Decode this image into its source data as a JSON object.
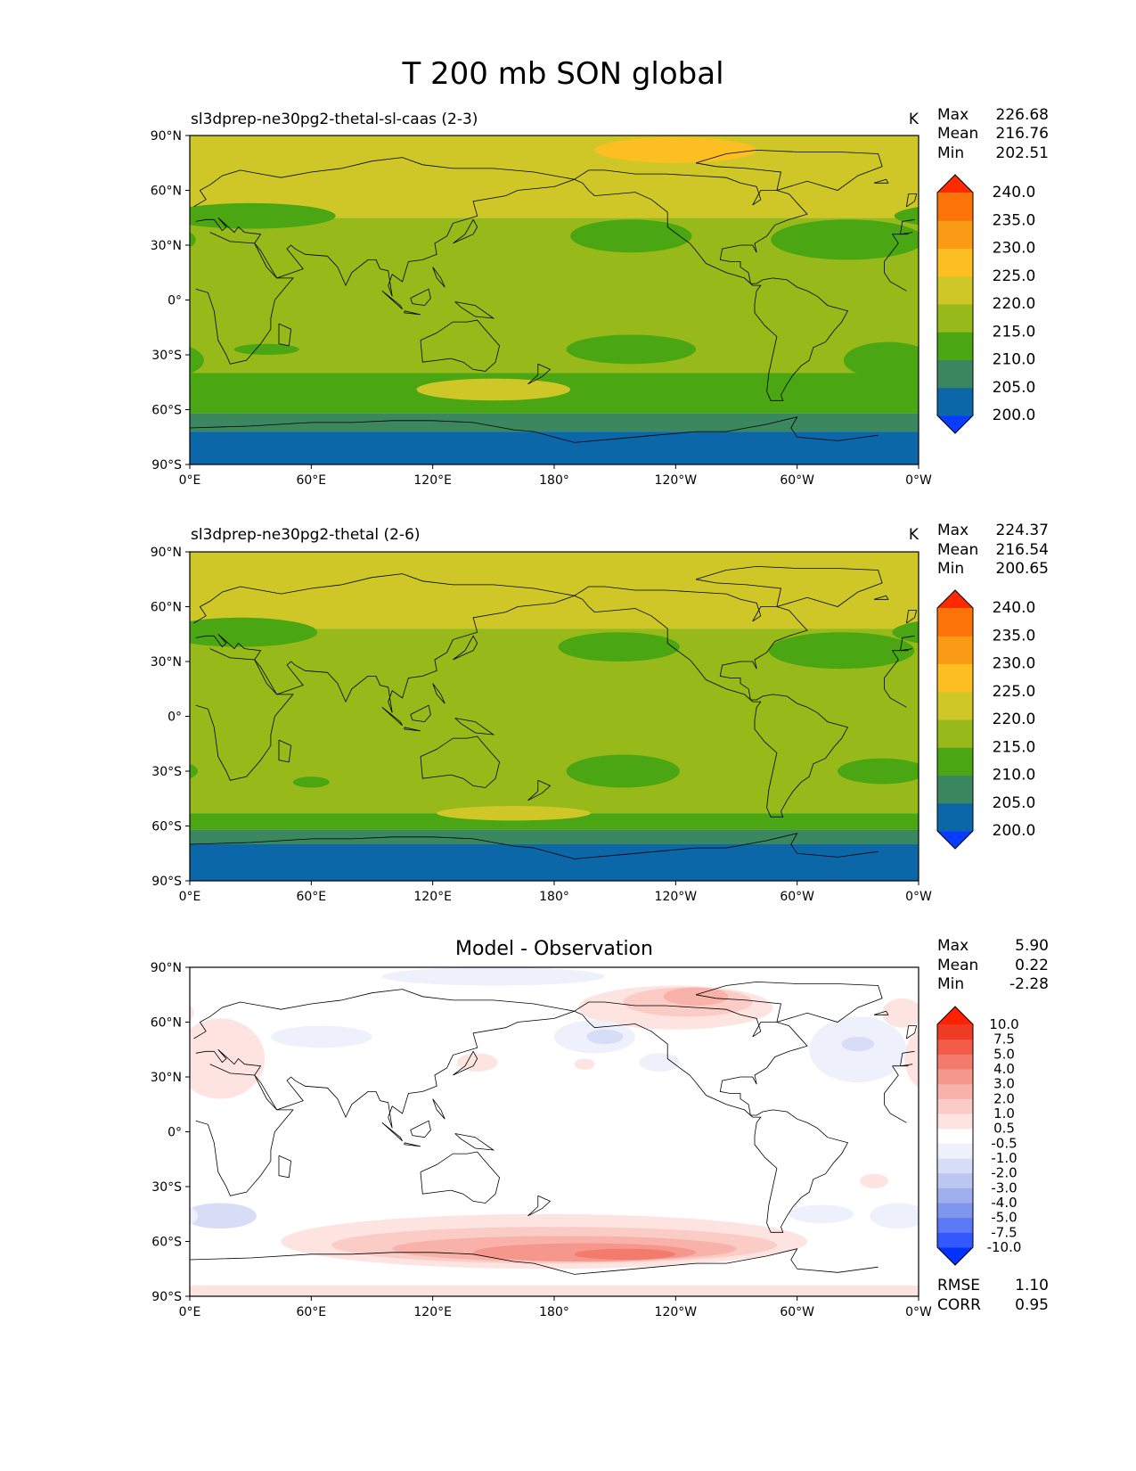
{
  "figure_title": "T 200 mb SON global",
  "chart_data": [
    {
      "type": "heatmap",
      "subtype": "filled-contour map",
      "title": "sl3dprep-ne30pg2-thetal-sl-caas (2-3)",
      "units": "K",
      "stats": {
        "labels": [
          "Max",
          "Mean",
          "Min"
        ],
        "values": [
          "226.68",
          "216.76",
          "202.51"
        ]
      },
      "x_ticks": [
        "0°E",
        "60°E",
        "120°E",
        "180°",
        "120°W",
        "60°W",
        "0°W"
      ],
      "y_ticks": [
        "90°N",
        "60°N",
        "30°N",
        "0°",
        "30°S",
        "60°S",
        "90°S"
      ],
      "xlim": [
        0,
        360
      ],
      "ylim": [
        -90,
        90
      ],
      "colorbar": {
        "extend": "both",
        "levels": [
          "200.0",
          "205.0",
          "210.0",
          "215.0",
          "220.0",
          "225.0",
          "230.0",
          "235.0",
          "240.0"
        ],
        "colors": [
          "#0a3cff",
          "#0b67a8",
          "#3a8760",
          "#4aa612",
          "#97b91a",
          "#cfc628",
          "#fbbf21",
          "#fb9a14",
          "#fb7309",
          "#ff2a00"
        ]
      },
      "fields": [
        {
          "lo": -90,
          "hi": -72,
          "lvl": 1
        },
        {
          "lo": -72,
          "hi": -62,
          "lvl": 2
        },
        {
          "lo": -62,
          "hi": -40,
          "lvl": 3
        },
        {
          "lo": -40,
          "hi": 45,
          "lvl": 4
        },
        {
          "lo": 45,
          "hi": 90,
          "lvl": 5
        }
      ],
      "blobs": [
        {
          "lon": 150,
          "lat": -49,
          "rx": 38,
          "ry": 6,
          "lvl": 5
        },
        {
          "lon": 218,
          "lat": -27,
          "rx": 32,
          "ry": 8,
          "lvl": 3
        },
        {
          "lon": 38,
          "lat": -27,
          "rx": 16,
          "ry": 3,
          "lvl": 3
        },
        {
          "lon": 345,
          "lat": -33,
          "rx": 22,
          "ry": 10,
          "lvl": 3
        },
        {
          "lon": 218,
          "lat": 35,
          "rx": 30,
          "ry": 9,
          "lvl": 3
        },
        {
          "lon": 325,
          "lat": 33,
          "rx": 38,
          "ry": 11,
          "lvl": 3
        },
        {
          "lon": 30,
          "lat": 46,
          "rx": 42,
          "ry": 7,
          "lvl": 3
        },
        {
          "lon": 240,
          "lat": 82,
          "rx": 40,
          "ry": 7,
          "lvl": 6
        }
      ]
    },
    {
      "type": "heatmap",
      "subtype": "filled-contour map",
      "title": "sl3dprep-ne30pg2-thetal (2-6)",
      "units": "K",
      "stats": {
        "labels": [
          "Max",
          "Mean",
          "Min"
        ],
        "values": [
          "224.37",
          "216.54",
          "200.65"
        ]
      },
      "x_ticks": [
        "0°E",
        "60°E",
        "120°E",
        "180°",
        "120°W",
        "60°W",
        "0°W"
      ],
      "y_ticks": [
        "90°N",
        "60°N",
        "30°N",
        "0°",
        "30°S",
        "60°S",
        "90°S"
      ],
      "xlim": [
        0,
        360
      ],
      "ylim": [
        -90,
        90
      ],
      "colorbar": {
        "extend": "both",
        "levels": [
          "200.0",
          "205.0",
          "210.0",
          "215.0",
          "220.0",
          "225.0",
          "230.0",
          "235.0",
          "240.0"
        ],
        "colors": [
          "#0a3cff",
          "#0b67a8",
          "#3a8760",
          "#4aa612",
          "#97b91a",
          "#cfc628",
          "#fbbf21",
          "#fb9a14",
          "#fb7309",
          "#ff2a00"
        ]
      },
      "fields": [
        {
          "lo": -90,
          "hi": -70,
          "lvl": 1
        },
        {
          "lo": -70,
          "hi": -62,
          "lvl": 2
        },
        {
          "lo": -62,
          "hi": -53,
          "lvl": 3
        },
        {
          "lo": -53,
          "hi": 48,
          "lvl": 4
        },
        {
          "lo": 48,
          "hi": 90,
          "lvl": 5
        }
      ],
      "blobs": [
        {
          "lon": 160,
          "lat": -53,
          "rx": 38,
          "ry": 4,
          "lvl": 5
        },
        {
          "lon": 214,
          "lat": -30,
          "rx": 28,
          "ry": 9,
          "lvl": 3
        },
        {
          "lon": 60,
          "lat": -36,
          "rx": 9,
          "ry": 3,
          "lvl": 3
        },
        {
          "lon": 342,
          "lat": -30,
          "rx": 22,
          "ry": 7,
          "lvl": 3
        },
        {
          "lon": 212,
          "lat": 38,
          "rx": 30,
          "ry": 8,
          "lvl": 3
        },
        {
          "lon": 322,
          "lat": 36,
          "rx": 36,
          "ry": 10,
          "lvl": 3
        },
        {
          "lon": 25,
          "lat": 46,
          "rx": 38,
          "ry": 8,
          "lvl": 3
        }
      ]
    },
    {
      "type": "heatmap",
      "subtype": "filled-contour map (difference)",
      "title": "Model - Observation",
      "stats": {
        "labels": [
          "Max",
          "Mean",
          "Min"
        ],
        "values": [
          "5.90",
          "0.22",
          "-2.28"
        ]
      },
      "metrics": {
        "labels": [
          "RMSE",
          "CORR"
        ],
        "values": [
          "1.10",
          "0.95"
        ]
      },
      "x_ticks": [
        "0°E",
        "60°E",
        "120°E",
        "180°",
        "120°W",
        "60°W",
        "0°W"
      ],
      "y_ticks": [
        "90°N",
        "60°N",
        "30°N",
        "0°",
        "30°S",
        "60°S",
        "90°S"
      ],
      "xlim": [
        0,
        360
      ],
      "ylim": [
        -90,
        90
      ],
      "colorbar": {
        "extend": "both",
        "levels": [
          "-10.0",
          "-7.5",
          "-5.0",
          "-4.0",
          "-3.0",
          "-2.0",
          "-1.0",
          "-0.5",
          "0.5",
          "1.0",
          "2.0",
          "3.0",
          "4.0",
          "5.0",
          "7.5",
          "10.0"
        ],
        "colors": [
          "#0033ff",
          "#3358ff",
          "#5b78f5",
          "#7f95ee",
          "#9fafee",
          "#bcc6f2",
          "#d8ddf7",
          "#eef0fb",
          "#ffffff",
          "#fde4e1",
          "#fbcbc5",
          "#f8b2a9",
          "#f5978c",
          "#f37b6d",
          "#f25c49",
          "#ef3a25",
          "#ff2200"
        ]
      },
      "fields": [
        {
          "lo": -90,
          "hi": -84,
          "lvl": 9
        },
        {
          "lo": -84,
          "hi": -58,
          "lvl": 8
        },
        {
          "lo": -58,
          "hi": 90,
          "lvl": 8
        }
      ],
      "blobs": [
        {
          "lon": 175,
          "lat": -60,
          "rx": 130,
          "ry": 15,
          "lvl": 9
        },
        {
          "lon": 180,
          "lat": -62,
          "rx": 110,
          "ry": 10,
          "lvl": 10
        },
        {
          "lon": 185,
          "lat": -64,
          "rx": 85,
          "ry": 7,
          "lvl": 11
        },
        {
          "lon": 195,
          "lat": -66,
          "rx": 55,
          "ry": 5,
          "lvl": 12
        },
        {
          "lon": 215,
          "lat": -67,
          "rx": 25,
          "ry": 3,
          "lvl": 13
        },
        {
          "lon": 240,
          "lat": 68,
          "rx": 48,
          "ry": 12,
          "lvl": 9
        },
        {
          "lon": 246,
          "lat": 71,
          "rx": 32,
          "ry": 8,
          "lvl": 10
        },
        {
          "lon": 250,
          "lat": 74,
          "rx": 16,
          "ry": 5,
          "lvl": 11
        },
        {
          "lon": 15,
          "lat": 40,
          "rx": 22,
          "ry": 22,
          "lvl": 9
        },
        {
          "lon": 352,
          "lat": 65,
          "rx": 10,
          "ry": 8,
          "lvl": 9
        },
        {
          "lon": 200,
          "lat": 52,
          "rx": 20,
          "ry": 9,
          "lvl": 7
        },
        {
          "lon": 205,
          "lat": 52,
          "rx": 9,
          "ry": 4,
          "lvl": 6
        },
        {
          "lon": 330,
          "lat": 45,
          "rx": 24,
          "ry": 18,
          "lvl": 7
        },
        {
          "lon": 330,
          "lat": 48,
          "rx": 8,
          "ry": 4,
          "lvl": 6
        },
        {
          "lon": 65,
          "lat": 52,
          "rx": 25,
          "ry": 6,
          "lvl": 7
        },
        {
          "lon": 150,
          "lat": 85,
          "rx": 55,
          "ry": 5,
          "lvl": 7
        },
        {
          "lon": 15,
          "lat": -46,
          "rx": 18,
          "ry": 7,
          "lvl": 6
        },
        {
          "lon": 350,
          "lat": -46,
          "rx": 14,
          "ry": 7,
          "lvl": 7
        },
        {
          "lon": 312,
          "lat": -45,
          "rx": 16,
          "ry": 5,
          "lvl": 7
        },
        {
          "lon": 142,
          "lat": 38,
          "rx": 10,
          "ry": 5,
          "lvl": 9
        },
        {
          "lon": 232,
          "lat": 38,
          "rx": 10,
          "ry": 5,
          "lvl": 7
        },
        {
          "lon": 338,
          "lat": -27,
          "rx": 7,
          "ry": 4,
          "lvl": 9
        },
        {
          "lon": 195,
          "lat": 37,
          "rx": 5,
          "ry": 3,
          "lvl": 9
        }
      ]
    }
  ]
}
